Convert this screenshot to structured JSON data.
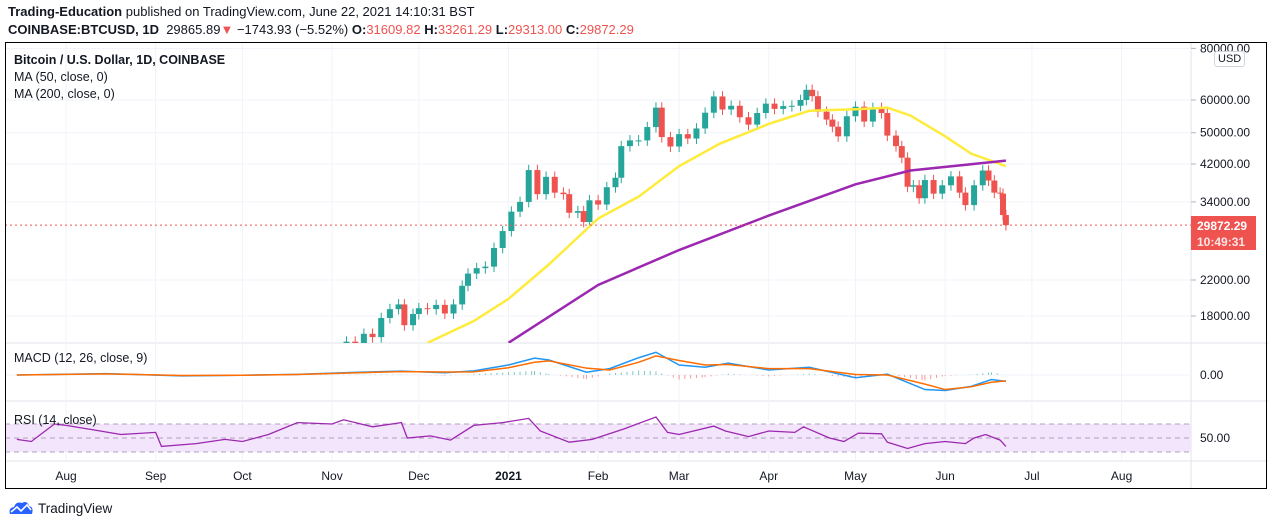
{
  "header": {
    "author": "Trading-Education",
    "published_text": "published on TradingView.com, June 22, 2021 14:10:31 BST",
    "symbol": "COINBASE:BTCUSD, 1D",
    "last": "29865.89",
    "change": "−1743.93 (−5.52%)",
    "o_label": "O:",
    "o": "31609.82",
    "h_label": "H:",
    "h": "33261.29",
    "l_label": "L:",
    "l": "29313.00",
    "c_label": "C:",
    "c": "29872.29"
  },
  "legend": {
    "title": "Bitcoin / U.S. Dollar, 1D, COINBASE",
    "ma50": "MA (50, close, 0)",
    "ma200": "MA (200, close, 0)",
    "macd": "MACD (12, 26, close, 9)",
    "rsi": "RSI (14, close)"
  },
  "currency": "USD",
  "price_tag": {
    "price": "29872.29",
    "countdown": "10:49:31"
  },
  "brand": "TradingView",
  "colors": {
    "up": "#26a69a",
    "down": "#ef5350",
    "ma50": "#ffeb3b",
    "ma200": "#9c27b0",
    "macd": "#2196f3",
    "signal": "#ff6d00",
    "rsi": "#9c27b0",
    "rsi_band": "#f3e5fc"
  },
  "chart_data": {
    "type": "candlestick",
    "scale": "log",
    "price_ticks": [
      "80000.00",
      "60000.00",
      "50000.00",
      "42000.00",
      "34000.00",
      "22000.00",
      "18000.00"
    ],
    "price_tick_values": [
      80000,
      60000,
      50000,
      42000,
      34000,
      22000,
      18000
    ],
    "macd_ticks": [
      "0.00"
    ],
    "rsi_ticks": [
      "50.00"
    ],
    "x_ticks": [
      {
        "label": "Aug",
        "date": "2020-08-01"
      },
      {
        "label": "Sep",
        "date": "2020-09-01"
      },
      {
        "label": "Oct",
        "date": "2020-10-01"
      },
      {
        "label": "Nov",
        "date": "2020-11-01"
      },
      {
        "label": "Dec",
        "date": "2020-12-01"
      },
      {
        "label": "2021",
        "date": "2021-01-01",
        "bold": true
      },
      {
        "label": "Feb",
        "date": "2021-02-01"
      },
      {
        "label": "Mar",
        "date": "2021-03-01"
      },
      {
        "label": "Apr",
        "date": "2021-04-01"
      },
      {
        "label": "May",
        "date": "2021-05-01"
      },
      {
        "label": "Jun",
        "date": "2021-06-01"
      },
      {
        "label": "Jul",
        "date": "2021-07-01"
      },
      {
        "label": "Aug",
        "date": "2021-08-01"
      }
    ],
    "last_price": 29872.29,
    "closes": [
      [
        "2020-11-03",
        14000
      ],
      [
        "2020-11-06",
        15600
      ],
      [
        "2020-11-09",
        15300
      ],
      [
        "2020-11-12",
        16300
      ],
      [
        "2020-11-15",
        16000
      ],
      [
        "2020-11-18",
        17800
      ],
      [
        "2020-11-21",
        18700
      ],
      [
        "2020-11-24",
        19200
      ],
      [
        "2020-11-26",
        17100
      ],
      [
        "2020-11-29",
        18200
      ],
      [
        "2020-12-01",
        18800
      ],
      [
        "2020-12-04",
        18700
      ],
      [
        "2020-12-07",
        19150
      ],
      [
        "2020-12-10",
        18250
      ],
      [
        "2020-12-13",
        19200
      ],
      [
        "2020-12-16",
        21300
      ],
      [
        "2020-12-18",
        22800
      ],
      [
        "2020-12-21",
        23500
      ],
      [
        "2020-12-24",
        23700
      ],
      [
        "2020-12-27",
        26300
      ],
      [
        "2020-12-30",
        28900
      ],
      [
        "2021-01-02",
        32200
      ],
      [
        "2021-01-05",
        34000
      ],
      [
        "2021-01-08",
        40600
      ],
      [
        "2021-01-11",
        35500
      ],
      [
        "2021-01-14",
        39100
      ],
      [
        "2021-01-17",
        35800
      ],
      [
        "2021-01-20",
        35500
      ],
      [
        "2021-01-22",
        32000
      ],
      [
        "2021-01-25",
        32300
      ],
      [
        "2021-01-27",
        30400
      ],
      [
        "2021-01-29",
        34300
      ],
      [
        "2021-02-01",
        33500
      ],
      [
        "2021-02-04",
        36900
      ],
      [
        "2021-02-07",
        38900
      ],
      [
        "2021-02-09",
        46400
      ],
      [
        "2021-02-12",
        47900
      ],
      [
        "2021-02-15",
        47900
      ],
      [
        "2021-02-18",
        51600
      ],
      [
        "2021-02-21",
        57500
      ],
      [
        "2021-02-23",
        48800
      ],
      [
        "2021-02-26",
        46300
      ],
      [
        "2021-03-01",
        49600
      ],
      [
        "2021-03-04",
        48400
      ],
      [
        "2021-03-07",
        51200
      ],
      [
        "2021-03-10",
        55900
      ],
      [
        "2021-03-13",
        61200
      ],
      [
        "2021-03-16",
        56900
      ],
      [
        "2021-03-19",
        58100
      ],
      [
        "2021-03-22",
        54500
      ],
      [
        "2021-03-25",
        52300
      ],
      [
        "2021-03-28",
        55800
      ],
      [
        "2021-03-31",
        58800
      ],
      [
        "2021-04-03",
        57100
      ],
      [
        "2021-04-06",
        58000
      ],
      [
        "2021-04-09",
        58100
      ],
      [
        "2021-04-12",
        60000
      ],
      [
        "2021-04-14",
        63500
      ],
      [
        "2021-04-16",
        61300
      ],
      [
        "2021-04-18",
        56200
      ],
      [
        "2021-04-21",
        53800
      ],
      [
        "2021-04-23",
        51700
      ],
      [
        "2021-04-25",
        49000
      ],
      [
        "2021-04-28",
        54800
      ],
      [
        "2021-05-01",
        57800
      ],
      [
        "2021-05-04",
        53200
      ],
      [
        "2021-05-07",
        57400
      ],
      [
        "2021-05-10",
        55800
      ],
      [
        "2021-05-12",
        49200
      ],
      [
        "2021-05-15",
        46400
      ],
      [
        "2021-05-17",
        43500
      ],
      [
        "2021-05-19",
        37000
      ],
      [
        "2021-05-21",
        37300
      ],
      [
        "2021-05-23",
        34700
      ],
      [
        "2021-05-25",
        38400
      ],
      [
        "2021-05-28",
        35600
      ],
      [
        "2021-05-31",
        37300
      ],
      [
        "2021-06-03",
        39200
      ],
      [
        "2021-06-06",
        35800
      ],
      [
        "2021-06-08",
        33400
      ],
      [
        "2021-06-11",
        37300
      ],
      [
        "2021-06-14",
        40500
      ],
      [
        "2021-06-16",
        38300
      ],
      [
        "2021-06-18",
        35800
      ],
      [
        "2021-06-20",
        35600
      ],
      [
        "2021-06-21",
        31600
      ],
      [
        "2021-06-22",
        29872.29
      ]
    ],
    "ma50": [
      [
        "2020-12-04",
        15500
      ],
      [
        "2020-12-20",
        17500
      ],
      [
        "2021-01-01",
        19800
      ],
      [
        "2021-01-15",
        24000
      ],
      [
        "2021-02-01",
        31000
      ],
      [
        "2021-02-15",
        35000
      ],
      [
        "2021-03-01",
        41500
      ],
      [
        "2021-03-15",
        47000
      ],
      [
        "2021-04-01",
        52500
      ],
      [
        "2021-04-15",
        56500
      ],
      [
        "2021-05-01",
        57000
      ],
      [
        "2021-05-12",
        57500
      ],
      [
        "2021-05-20",
        55000
      ],
      [
        "2021-06-01",
        49000
      ],
      [
        "2021-06-10",
        44500
      ],
      [
        "2021-06-22",
        41500
      ]
    ],
    "ma200": [
      [
        "2021-01-01",
        15500
      ],
      [
        "2021-02-01",
        21400
      ],
      [
        "2021-03-01",
        26000
      ],
      [
        "2021-04-01",
        31500
      ],
      [
        "2021-05-01",
        37500
      ],
      [
        "2021-05-20",
        40500
      ],
      [
        "2021-06-22",
        42800
      ]
    ],
    "macd": [
      [
        "2020-07-15",
        0,
        0
      ],
      [
        "2020-08-15",
        300,
        250
      ],
      [
        "2020-09-10",
        -200,
        -100
      ],
      [
        "2020-10-01",
        -50,
        -50
      ],
      [
        "2020-10-20",
        150,
        100
      ],
      [
        "2020-11-10",
        600,
        500
      ],
      [
        "2020-11-25",
        850,
        750
      ],
      [
        "2020-12-10",
        500,
        650
      ],
      [
        "2020-12-20",
        900,
        700
      ],
      [
        "2021-01-01",
        2200,
        1600
      ],
      [
        "2021-01-10",
        3700,
        2800
      ],
      [
        "2021-01-15",
        3300,
        3100
      ],
      [
        "2021-01-28",
        600,
        1500
      ],
      [
        "2021-02-05",
        1400,
        1100
      ],
      [
        "2021-02-15",
        3800,
        2800
      ],
      [
        "2021-02-21",
        5000,
        4200
      ],
      [
        "2021-03-01",
        2200,
        3200
      ],
      [
        "2021-03-10",
        1700,
        2200
      ],
      [
        "2021-03-18",
        2600,
        2300
      ],
      [
        "2021-04-01",
        1100,
        1400
      ],
      [
        "2021-04-15",
        1700,
        1400
      ],
      [
        "2021-05-01",
        -600,
        100
      ],
      [
        "2021-05-12",
        200,
        0
      ],
      [
        "2021-05-25",
        -3200,
        -2000
      ],
      [
        "2021-06-01",
        -3400,
        -3200
      ],
      [
        "2021-06-10",
        -2500,
        -2600
      ],
      [
        "2021-06-17",
        -1000,
        -1600
      ],
      [
        "2021-06-22",
        -1400,
        -1300
      ]
    ],
    "rsi": [
      [
        "2020-07-15",
        48
      ],
      [
        "2020-07-20",
        45
      ],
      [
        "2020-07-28",
        70
      ],
      [
        "2020-08-01",
        68
      ],
      [
        "2020-08-10",
        62
      ],
      [
        "2020-08-20",
        55
      ],
      [
        "2020-09-01",
        58
      ],
      [
        "2020-09-03",
        38
      ],
      [
        "2020-09-15",
        42
      ],
      [
        "2020-09-25",
        48
      ],
      [
        "2020-10-01",
        45
      ],
      [
        "2020-10-10",
        55
      ],
      [
        "2020-10-20",
        72
      ],
      [
        "2020-11-01",
        70
      ],
      [
        "2020-11-05",
        76
      ],
      [
        "2020-11-15",
        66
      ],
      [
        "2020-11-25",
        72
      ],
      [
        "2020-11-27",
        50
      ],
      [
        "2020-12-05",
        53
      ],
      [
        "2020-12-12",
        47
      ],
      [
        "2020-12-20",
        68
      ],
      [
        "2020-12-30",
        72
      ],
      [
        "2021-01-08",
        78
      ],
      [
        "2021-01-12",
        60
      ],
      [
        "2021-01-22",
        44
      ],
      [
        "2021-01-30",
        48
      ],
      [
        "2021-02-10",
        63
      ],
      [
        "2021-02-21",
        80
      ],
      [
        "2021-02-25",
        58
      ],
      [
        "2021-03-01",
        55
      ],
      [
        "2021-03-13",
        67
      ],
      [
        "2021-03-17",
        60
      ],
      [
        "2021-03-25",
        52
      ],
      [
        "2021-04-01",
        60
      ],
      [
        "2021-04-10",
        58
      ],
      [
        "2021-04-13",
        66
      ],
      [
        "2021-04-22",
        50
      ],
      [
        "2021-04-27",
        45
      ],
      [
        "2021-05-02",
        57
      ],
      [
        "2021-05-10",
        56
      ],
      [
        "2021-05-12",
        44
      ],
      [
        "2021-05-19",
        35
      ],
      [
        "2021-05-25",
        42
      ],
      [
        "2021-06-01",
        45
      ],
      [
        "2021-06-08",
        42
      ],
      [
        "2021-06-11",
        50
      ],
      [
        "2021-06-15",
        55
      ],
      [
        "2021-06-20",
        47
      ],
      [
        "2021-06-22",
        38
      ]
    ],
    "rsi_band": [
      30,
      70
    ]
  }
}
